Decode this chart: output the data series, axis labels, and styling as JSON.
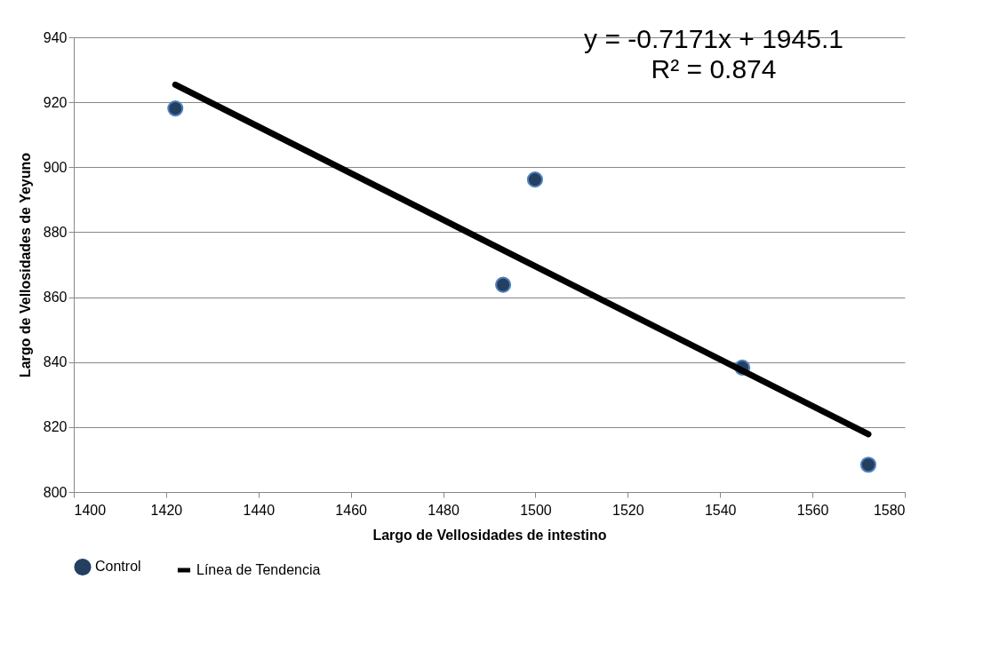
{
  "chart_data": {
    "type": "scatter",
    "xlabel": "Largo de Vellosidades de intestino",
    "ylabel": "Largo de Vellosidades de Yeyuno",
    "x": [
      1422.0,
      1493.0,
      1499.9,
      1544.8,
      1572.1
    ],
    "series": [
      {
        "name": "Control",
        "color": "#243f60",
        "marker": "circle",
        "values": [
          918.1,
          863.8,
          896.2,
          838.3,
          808.4
        ]
      },
      {
        "name": "Línea de Tendencia",
        "type": "line",
        "color": "#000000",
        "x": [
          1422.0,
          1572.1
        ],
        "values": [
          925.4,
          817.8
        ]
      }
    ],
    "annotations": [
      "y = -0.7171x + 1945.1",
      "R² = 0.874"
    ],
    "xlim": [
      1400,
      1580
    ],
    "xticks": [
      1400,
      1420,
      1440,
      1460,
      1480,
      1500,
      1520,
      1540,
      1560,
      1580
    ],
    "ylim": [
      800,
      940
    ],
    "yticks": [
      800,
      820,
      840,
      860,
      880,
      900,
      920,
      940
    ],
    "grid": "y",
    "legend": "bottom"
  }
}
